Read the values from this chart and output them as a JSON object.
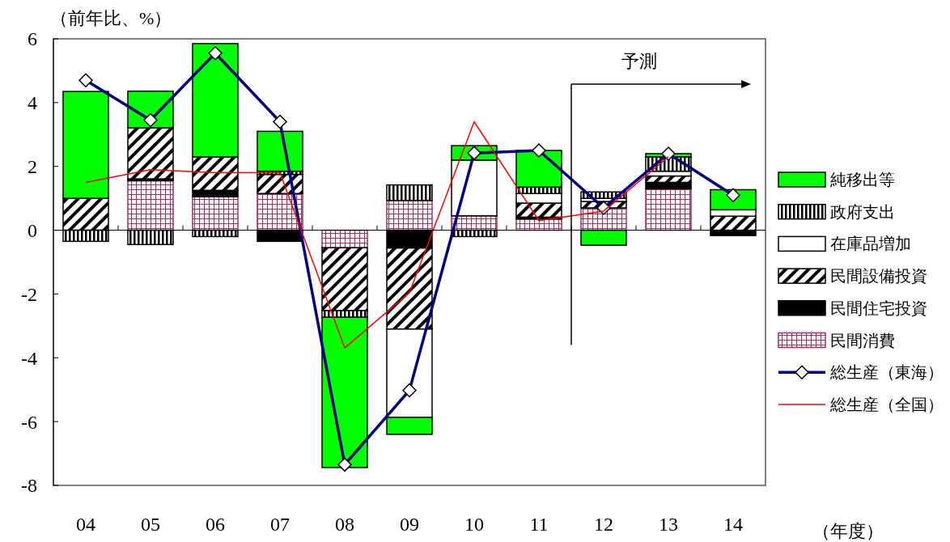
{
  "chart_data": {
    "type": "bar",
    "stacked": true,
    "ylabel": "（前年比、%）",
    "xlabel": "（年度）",
    "categories": [
      "04",
      "05",
      "06",
      "07",
      "08",
      "09",
      "10",
      "11",
      "12",
      "13",
      "14"
    ],
    "ylim": [
      -8,
      6
    ],
    "yticks": [
      -8,
      -6,
      -4,
      -2,
      0,
      2,
      4,
      6
    ],
    "legend": "right",
    "annotations": [
      "予測"
    ],
    "series": [
      {
        "name": "民間消費",
        "color": "#993366",
        "values": [
          0,
          1.55,
          1.05,
          1.15,
          -0.55,
          0.93,
          0.45,
          0.35,
          0.7,
          1.3,
          0
        ]
      },
      {
        "name": "民間住宅投資",
        "color": "#000000",
        "values": [
          null,
          0.06,
          0.2,
          -0.35,
          0,
          -0.56,
          0,
          0.06,
          0,
          0.2,
          -0.17
        ]
      },
      {
        "name": "民間設備投資",
        "color": "#000000",
        "values": [
          1.0,
          1.6,
          1.05,
          0.6,
          -1.97,
          -2.54,
          null,
          0.44,
          0.2,
          0.2,
          0.44
        ]
      },
      {
        "name": "在庫品増加",
        "color": "#ffffff",
        "values": [
          0,
          0,
          0,
          0,
          0,
          -2.77,
          1.75,
          0.3,
          0.1,
          0.15,
          0.2
        ]
      },
      {
        "name": "政府支出",
        "color": "#000000",
        "values": [
          -0.35,
          -0.45,
          -0.2,
          0.1,
          -0.21,
          0.49,
          -0.2,
          0.2,
          0.2,
          0.45,
          0
        ]
      },
      {
        "name": "純移出等",
        "color": "#00ff00",
        "values": [
          3.35,
          1.15,
          3.55,
          1.25,
          -4.71,
          -0.53,
          0.45,
          1.15,
          -0.47,
          0.1,
          0.63
        ]
      },
      {
        "name": "総生産（東海）",
        "type": "line",
        "color": "#000080",
        "marker": "diamond",
        "values": [
          4.7,
          3.45,
          5.55,
          3.4,
          -7.35,
          -5.02,
          2.42,
          2.5,
          0.7,
          2.4,
          1.1
        ]
      },
      {
        "name": "総生産（全国）",
        "type": "line",
        "color": "#ff0000",
        "marker": "none",
        "values": [
          1.5,
          1.9,
          1.8,
          1.8,
          -3.69,
          -1.96,
          3.4,
          0.3,
          0.6,
          2.3,
          null
        ]
      }
    ]
  }
}
